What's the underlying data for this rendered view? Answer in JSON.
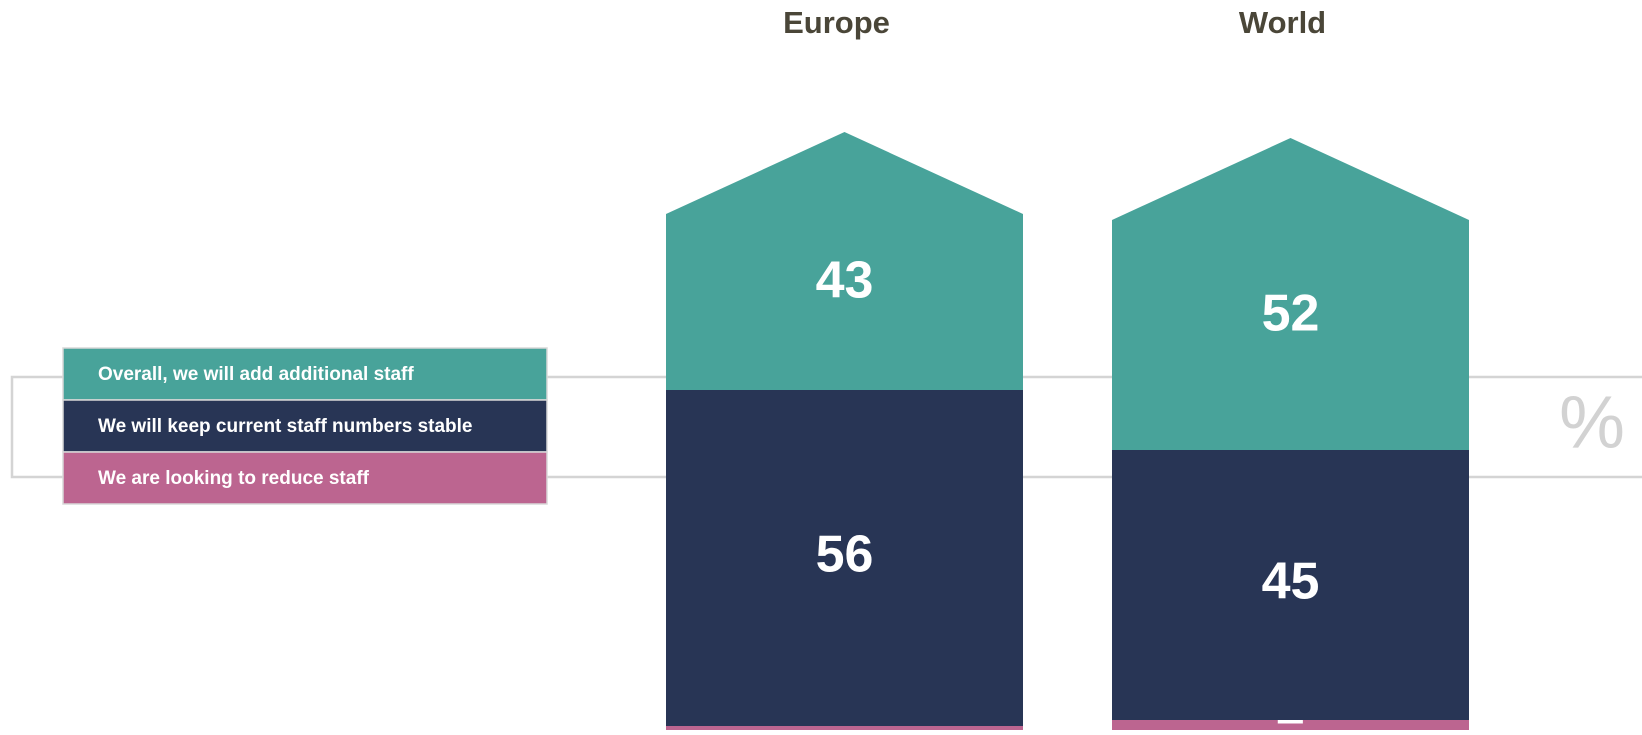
{
  "chart_data": {
    "type": "house_stacked_bar",
    "categories": [
      "Europe",
      "World"
    ],
    "series": [
      {
        "name": "We are looking to reduce staff",
        "color": "#bc6590",
        "values": [
          1,
          2
        ]
      },
      {
        "name": "We will keep current staff numbers stable",
        "color": "#283555",
        "values": [
          56,
          45
        ]
      },
      {
        "name": "Overall, we will add additional staff",
        "color": "#48a39a",
        "values": [
          43,
          52
        ]
      }
    ],
    "unit": "%"
  }
}
